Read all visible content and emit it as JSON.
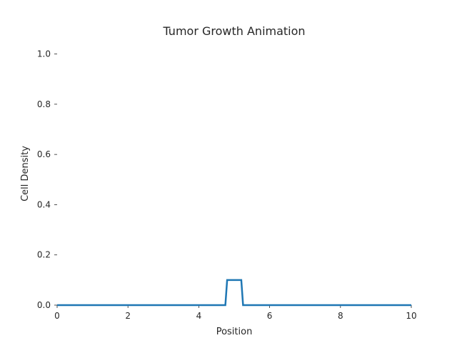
{
  "chart_data": {
    "type": "line",
    "title": "Tumor Growth Animation",
    "xlabel": "Position",
    "ylabel": "Cell Density",
    "xlim": [
      0,
      10
    ],
    "ylim": [
      0,
      1.05
    ],
    "x_ticks": [
      "0",
      "2",
      "4",
      "6",
      "8",
      "10"
    ],
    "y_ticks": [
      "0.0",
      "0.2",
      "0.4",
      "0.6",
      "0.8",
      "1.0"
    ],
    "grid": false,
    "series": [
      {
        "color": "#1f77b4",
        "x": [
          0,
          4.75,
          4.8,
          5.2,
          5.25,
          10
        ],
        "y": [
          0,
          0,
          0.1,
          0.1,
          0,
          0
        ]
      }
    ]
  }
}
